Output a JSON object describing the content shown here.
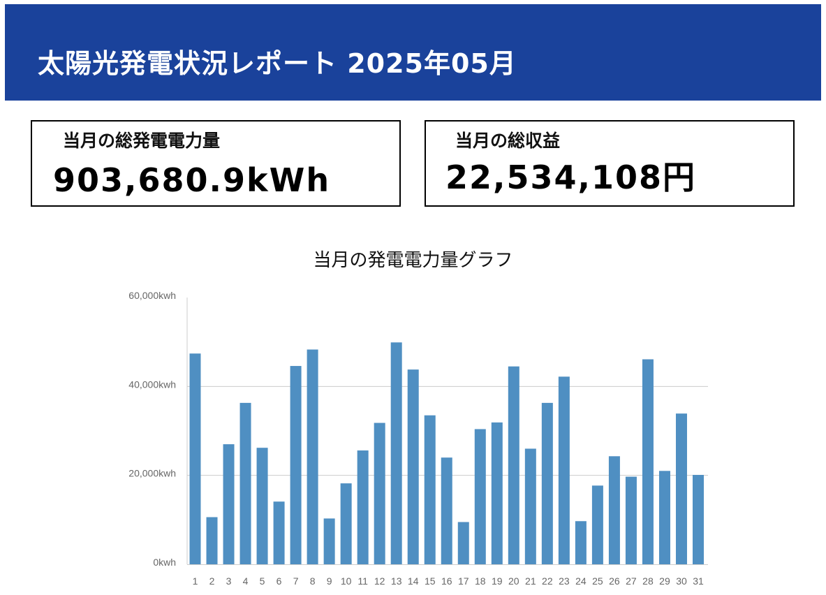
{
  "header": {
    "title": "太陽光発電状況レポート 2025年05月"
  },
  "summary": {
    "energy_label": "当月の総発電電力量",
    "energy_value": "903,680.9kWh",
    "revenue_label": "当月の総収益",
    "revenue_value": "22,534,108円"
  },
  "colors": {
    "header_bg": "#1a429b",
    "bar": "#4f8fc2",
    "grid": "#cccccc"
  },
  "chart_data": {
    "type": "bar",
    "title": "当月の発電電力量グラフ",
    "xlabel": "",
    "ylabel": "",
    "ylim": [
      0,
      60000
    ],
    "y_ticks": [
      {
        "value": 0,
        "label": "0kwh"
      },
      {
        "value": 20000,
        "label": "20,000kwh"
      },
      {
        "value": 40000,
        "label": "40,000kwh"
      },
      {
        "value": 60000,
        "label": "60,000kwh"
      }
    ],
    "grid": true,
    "legend": "none",
    "categories": [
      "1",
      "2",
      "3",
      "4",
      "5",
      "6",
      "7",
      "8",
      "9",
      "10",
      "11",
      "12",
      "13",
      "14",
      "15",
      "16",
      "17",
      "18",
      "19",
      "20",
      "21",
      "22",
      "23",
      "24",
      "25",
      "26",
      "27",
      "28",
      "29",
      "30",
      "31"
    ],
    "values": [
      47400,
      10600,
      27000,
      36300,
      26200,
      14100,
      44600,
      48300,
      10300,
      18200,
      25600,
      31800,
      49900,
      43800,
      33500,
      24000,
      9500,
      30400,
      31900,
      44500,
      26000,
      36300,
      42200,
      9700,
      17700,
      24300,
      19700,
      46100,
      21000,
      33900,
      20100
    ]
  }
}
